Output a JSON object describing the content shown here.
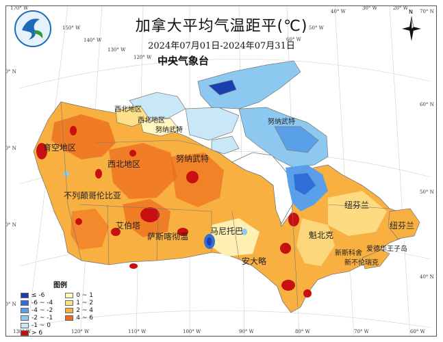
{
  "title": "加拿大平均气温距平(℃)",
  "date_range": "2024年07月01日-2024年07月31日",
  "agency": "中央气象台",
  "compass_label": "N",
  "top_lon_labels": [
    "170° W",
    "150° W",
    "140° W",
    "130° W",
    "120° W",
    "110° W",
    "40° W",
    "30° W",
    "50° W",
    "60° W",
    "20° W"
  ],
  "bottom_lon_labels": [
    "130° W",
    "120° W",
    "110° W",
    "100° W",
    "90° W",
    "80° W",
    "70° W",
    "60° W"
  ],
  "left_lat_labels": [
    "70° N",
    "60° N",
    "50° N",
    "40° N"
  ],
  "right_lat_labels": [
    "70° N",
    "60° N",
    "50° N",
    "40° N"
  ],
  "regions": {
    "yukon": "育空地区",
    "nwt_upper": "西北地区",
    "nwt_island": "西北地区",
    "nwt_main": "西北地区",
    "nunavut_upper": "努纳武特",
    "nunavut_island": "努纳武特",
    "nunavut_main": "努纳武特",
    "bc": "不列颠哥伦比亚",
    "alberta": "艾伯塔",
    "saskatchewan": "萨斯喀彻温",
    "manitoba": "马尼托巴",
    "ontario": "安大略",
    "quebec": "魁北克",
    "newfoundland_main": "纽芬兰",
    "newfoundland_island": "纽芬兰",
    "pei": "爱德华王子岛",
    "nova_scotia": "新斯科舍",
    "new_brunswick": "新不伦瑞克"
  },
  "legend": {
    "title": "图例",
    "items": [
      {
        "label": "≤ -6",
        "color": "#1a3fb0"
      },
      {
        "label": "-6 ~ -4",
        "color": "#2f6fd6"
      },
      {
        "label": "-4 ~ -2",
        "color": "#5aa0e8"
      },
      {
        "label": "-2 ~ -1",
        "color": "#8cc8f0"
      },
      {
        "label": "-1 ~ 0",
        "color": "#c8e8f8"
      },
      {
        "label": "> 6",
        "color": "#c81010"
      },
      {
        "label": "0 ~ 1",
        "color": "#fff6c0"
      },
      {
        "label": "1 ~ 2",
        "color": "#fde08a"
      },
      {
        "label": "2 ~ 4",
        "color": "#f8b040"
      },
      {
        "label": "4 ~ 6",
        "color": "#ee6a1c"
      }
    ]
  }
}
